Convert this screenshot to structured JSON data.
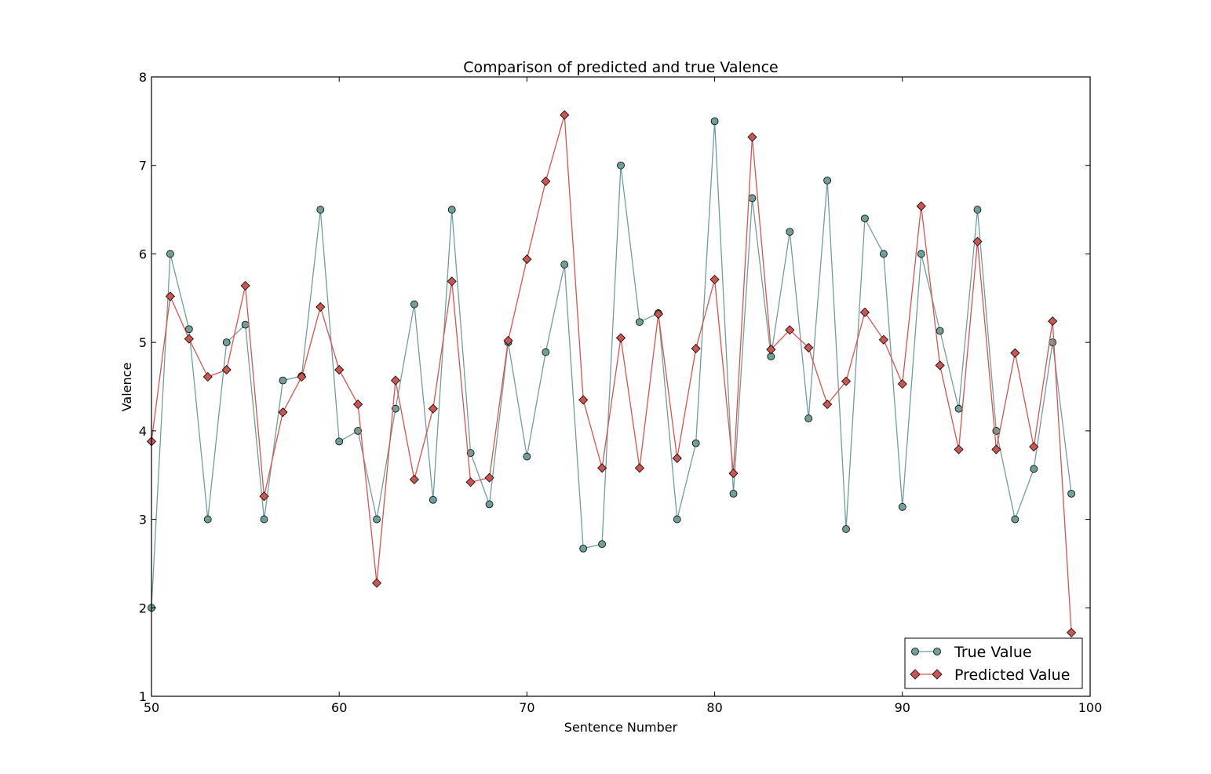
{
  "chart_data": {
    "type": "line",
    "title": "Comparison of predicted and true Valence",
    "xlabel": "Sentence Number",
    "ylabel": "Valence",
    "xlim": [
      50,
      100
    ],
    "ylim": [
      1,
      8
    ],
    "xticks": [
      "50",
      "60",
      "70",
      "80",
      "90",
      "100"
    ],
    "yticks": [
      "1",
      "2",
      "3",
      "4",
      "5",
      "6",
      "7",
      "8"
    ],
    "grid": false,
    "legend_position": "bottom-right",
    "x": [
      50,
      51,
      52,
      53,
      54,
      55,
      56,
      57,
      58,
      59,
      60,
      61,
      62,
      63,
      64,
      65,
      66,
      67,
      68,
      69,
      70,
      71,
      72,
      73,
      74,
      75,
      76,
      77,
      78,
      79,
      80,
      81,
      82,
      83,
      84,
      85,
      86,
      87,
      88,
      89,
      90,
      91,
      92,
      93,
      94,
      95,
      96,
      97,
      98,
      99
    ],
    "series": [
      {
        "name": "True Value",
        "marker": "circle",
        "color": "#6e9f9b",
        "marker_fill": "#6e9f9b",
        "values": [
          2.0,
          6.0,
          5.15,
          3.0,
          5.0,
          5.2,
          3.0,
          4.57,
          4.62,
          6.5,
          3.88,
          4.0,
          3.0,
          4.25,
          5.43,
          3.22,
          6.5,
          3.75,
          3.17,
          5.0,
          3.71,
          4.89,
          5.88,
          2.67,
          2.72,
          7.0,
          5.23,
          5.33,
          3.0,
          3.86,
          7.5,
          3.29,
          6.63,
          4.84,
          6.25,
          4.14,
          6.83,
          2.89,
          6.4,
          6.0,
          3.14,
          6.0,
          5.13,
          4.25,
          6.5,
          4.0,
          3.0,
          3.57,
          5.0,
          3.29
        ]
      },
      {
        "name": "Predicted Value",
        "marker": "diamond",
        "color": "#d9534f",
        "marker_fill": "#cc5550",
        "values": [
          3.88,
          5.52,
          5.04,
          4.61,
          4.69,
          5.64,
          3.26,
          4.21,
          4.61,
          5.4,
          4.69,
          4.3,
          2.28,
          4.57,
          3.45,
          4.25,
          5.69,
          3.42,
          3.47,
          5.02,
          5.94,
          6.82,
          7.57,
          4.35,
          3.58,
          5.05,
          3.58,
          5.32,
          3.69,
          4.93,
          5.71,
          3.52,
          7.32,
          4.92,
          5.14,
          4.94,
          4.3,
          4.56,
          5.34,
          5.03,
          4.53,
          6.54,
          4.74,
          3.79,
          6.14,
          3.79,
          4.88,
          3.82,
          5.24,
          1.72
        ]
      }
    ]
  }
}
